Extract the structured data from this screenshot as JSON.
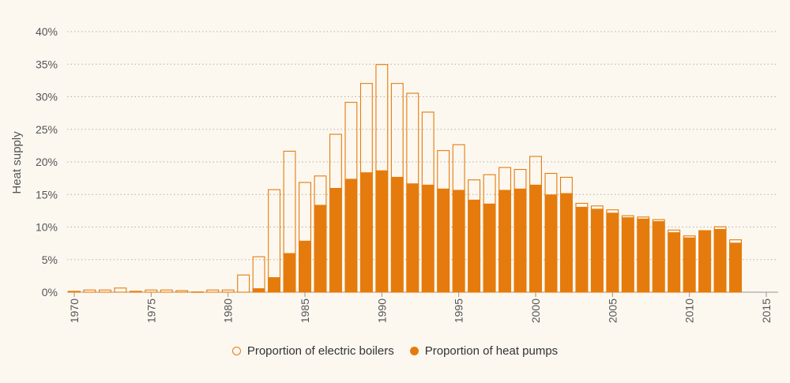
{
  "chart_data": {
    "type": "bar",
    "stacking": "overlay",
    "ylabel": "Heat supply",
    "ylim": [
      0,
      40
    ],
    "yticks": [
      "0%",
      "5%",
      "10%",
      "15%",
      "20%",
      "25%",
      "30%",
      "35%",
      "40%"
    ],
    "xlim": [
      1970,
      2015
    ],
    "xticks": [
      "1970",
      "1975",
      "1980",
      "1985",
      "1990",
      "1995",
      "2000",
      "2005",
      "2010",
      "2015"
    ],
    "grid": true,
    "legend_position": "bottom-center",
    "x": [
      1970,
      1971,
      1972,
      1973,
      1974,
      1975,
      1976,
      1977,
      1978,
      1979,
      1980,
      1981,
      1982,
      1983,
      1984,
      1985,
      1986,
      1987,
      1988,
      1989,
      1990,
      1991,
      1992,
      1993,
      1994,
      1995,
      1996,
      1997,
      1998,
      1999,
      2000,
      2001,
      2002,
      2003,
      2004,
      2005,
      2006,
      2007,
      2008,
      2009,
      2010,
      2011,
      2012,
      2013
    ],
    "series": [
      {
        "name": "Proportion of electric boilers",
        "color": "#e57b0c",
        "style": "outline",
        "values": [
          0.2,
          0.4,
          0.4,
          0.7,
          0.2,
          0.4,
          0.4,
          0.3,
          0.1,
          0.4,
          0.4,
          2.7,
          5.5,
          15.8,
          21.7,
          16.9,
          17.9,
          24.3,
          29.2,
          32.1,
          35.0,
          32.1,
          30.6,
          27.7,
          21.8,
          22.7,
          17.3,
          18.1,
          19.2,
          18.9,
          20.9,
          18.3,
          17.7,
          13.7,
          13.3,
          12.7,
          11.8,
          11.6,
          11.2,
          9.6,
          8.7,
          9.5,
          10.1,
          8.1
        ]
      },
      {
        "name": "Proportion of heat pumps",
        "color": "#e57b0c",
        "style": "filled",
        "values": [
          0,
          0,
          0,
          0,
          0,
          0,
          0,
          0,
          0,
          0,
          0,
          0,
          0.6,
          2.3,
          6.0,
          7.9,
          13.4,
          16.0,
          17.4,
          18.4,
          18.7,
          17.7,
          16.7,
          16.5,
          15.9,
          15.7,
          14.2,
          13.6,
          15.7,
          15.9,
          16.5,
          15.0,
          15.2,
          13.1,
          12.8,
          12.2,
          11.5,
          11.3,
          10.9,
          9.2,
          8.4,
          9.5,
          9.7,
          7.6
        ]
      }
    ]
  }
}
